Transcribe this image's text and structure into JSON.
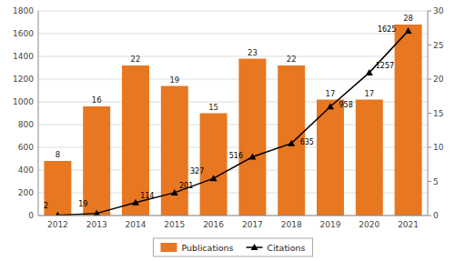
{
  "chart_data": {
    "type": "bar",
    "categories": [
      "2012",
      "2013",
      "2014",
      "2015",
      "2016",
      "2017",
      "2018",
      "2019",
      "2020",
      "2021"
    ],
    "series": [
      {
        "name": "Publications",
        "type": "bar",
        "axis": "y2",
        "color": "#E87722",
        "values": [
          8,
          16,
          22,
          19,
          15,
          23,
          22,
          17,
          17,
          28
        ]
      },
      {
        "name": "Citations",
        "type": "line",
        "color": "#000000",
        "marker": "triangle",
        "values": [
          2,
          19,
          114,
          201,
          327,
          516,
          635,
          958,
          1257,
          1625
        ]
      }
    ],
    "ylim": [
      0,
      1800
    ],
    "yticks": [
      0,
      200,
      400,
      600,
      800,
      1000,
      1200,
      1400,
      1600,
      1800
    ],
    "y2lim": [
      0,
      30
    ],
    "y2ticks": [
      0,
      5,
      10,
      15,
      20,
      25,
      30
    ],
    "grid": true,
    "data_labels": true,
    "legend": "bottom"
  }
}
